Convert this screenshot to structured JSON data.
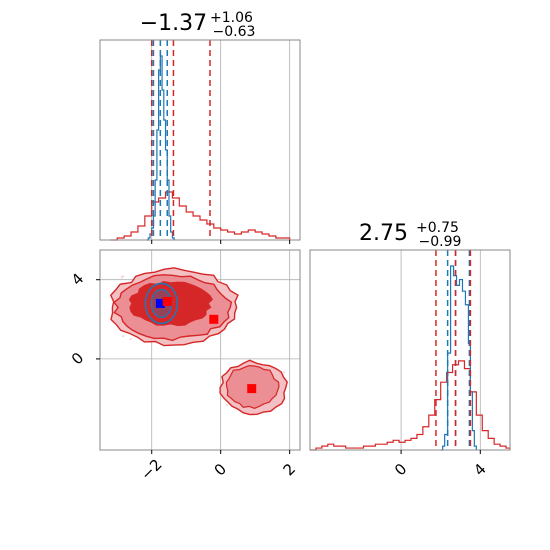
{
  "chart_data": {
    "type": "corner",
    "parameters": [
      {
        "title_median": "−1.37",
        "title_plus": "+1.06",
        "title_minus": "−0.63",
        "lim": [
          -3.5,
          2.3
        ],
        "ticks": [
          -2,
          0,
          2
        ],
        "tick_labels": [
          "−2",
          "0",
          "2"
        ]
      },
      {
        "title_median": "2.75",
        "title_plus": "+0.75",
        "title_minus": "−0.99",
        "lim": [
          -4.6,
          5.5
        ],
        "ticks": [
          0,
          4
        ],
        "tick_labels": [
          "0",
          "4"
        ]
      }
    ],
    "grid": true,
    "series": [
      {
        "color": "#1f77b4",
        "quantiles_p1": [
          -1.95,
          -1.75,
          -1.55
        ],
        "quantiles_p2": [
          2.35,
          2.75,
          3.45
        ]
      },
      {
        "color": "#d62728",
        "quantiles_p1": [
          -2.0,
          -1.37,
          -0.31
        ],
        "quantiles_p2": [
          1.76,
          2.75,
          3.5
        ]
      }
    ],
    "markers": [
      {
        "color": "#0000ff",
        "x": -1.75,
        "y": 2.8
      },
      {
        "color": "#ff0000",
        "x": -1.55,
        "y": 2.9
      },
      {
        "color": "#ff0000",
        "x": -0.2,
        "y": 2.0
      },
      {
        "color": "#ff0000",
        "x": 0.9,
        "y": -1.5
      }
    ],
    "hist1_blue": [
      [
        -2.15,
        0
      ],
      [
        -2.1,
        0.01
      ],
      [
        -2.05,
        0.03
      ],
      [
        -2.0,
        0.06
      ],
      [
        -1.95,
        0.12
      ],
      [
        -1.9,
        0.3
      ],
      [
        -1.85,
        0.55
      ],
      [
        -1.8,
        0.85
      ],
      [
        -1.75,
        0.92
      ],
      [
        -1.7,
        0.75
      ],
      [
        -1.65,
        0.6
      ],
      [
        -1.6,
        0.45
      ],
      [
        -1.55,
        0.3
      ],
      [
        -1.5,
        0.12
      ],
      [
        -1.45,
        0.04
      ],
      [
        -1.4,
        0.01
      ],
      [
        -1.35,
        0
      ]
    ],
    "hist1_red": [
      [
        -3.2,
        0
      ],
      [
        -3.0,
        0.01
      ],
      [
        -2.8,
        0.02
      ],
      [
        -2.6,
        0.04
      ],
      [
        -2.4,
        0.07
      ],
      [
        -2.2,
        0.12
      ],
      [
        -2.0,
        0.19
      ],
      [
        -1.8,
        0.21
      ],
      [
        -1.6,
        0.24
      ],
      [
        -1.4,
        0.21
      ],
      [
        -1.2,
        0.17
      ],
      [
        -1.0,
        0.14
      ],
      [
        -0.8,
        0.12
      ],
      [
        -0.6,
        0.1
      ],
      [
        -0.4,
        0.08
      ],
      [
        -0.2,
        0.06
      ],
      [
        0.0,
        0.05
      ],
      [
        0.2,
        0.04
      ],
      [
        0.4,
        0.03
      ],
      [
        0.6,
        0.04
      ],
      [
        0.8,
        0.05
      ],
      [
        1.0,
        0.04
      ],
      [
        1.2,
        0.03
      ],
      [
        1.4,
        0.02
      ],
      [
        1.6,
        0.01
      ],
      [
        1.8,
        0.01
      ],
      [
        2.0,
        0
      ]
    ],
    "hist2_blue": [
      [
        2.0,
        0
      ],
      [
        2.1,
        0.02
      ],
      [
        2.2,
        0.08
      ],
      [
        2.35,
        0.5
      ],
      [
        2.5,
        0.95
      ],
      [
        2.65,
        0.9
      ],
      [
        2.8,
        0.85
      ],
      [
        2.95,
        0.88
      ],
      [
        3.1,
        0.82
      ],
      [
        3.25,
        0.75
      ],
      [
        3.4,
        0.55
      ],
      [
        3.5,
        0.3
      ],
      [
        3.6,
        0.1
      ],
      [
        3.7,
        0.02
      ],
      [
        3.8,
        0
      ]
    ],
    "hist2_red": [
      [
        -4.6,
        0
      ],
      [
        -4.3,
        0.01
      ],
      [
        -4.0,
        0.02
      ],
      [
        -3.7,
        0.03
      ],
      [
        -3.4,
        0.02
      ],
      [
        -3.1,
        0.02
      ],
      [
        -2.8,
        0.01
      ],
      [
        -2.5,
        0.01
      ],
      [
        -2.2,
        0.01
      ],
      [
        -1.9,
        0.02
      ],
      [
        -1.6,
        0.02
      ],
      [
        -1.3,
        0.03
      ],
      [
        -1.0,
        0.03
      ],
      [
        -0.7,
        0.04
      ],
      [
        -0.4,
        0.05
      ],
      [
        -0.1,
        0.04
      ],
      [
        0.2,
        0.05
      ],
      [
        0.5,
        0.06
      ],
      [
        0.8,
        0.08
      ],
      [
        1.1,
        0.12
      ],
      [
        1.4,
        0.18
      ],
      [
        1.7,
        0.26
      ],
      [
        2.0,
        0.35
      ],
      [
        2.3,
        0.4
      ],
      [
        2.6,
        0.44
      ],
      [
        2.9,
        0.46
      ],
      [
        3.2,
        0.42
      ],
      [
        3.5,
        0.3
      ],
      [
        3.8,
        0.18
      ],
      [
        4.1,
        0.1
      ],
      [
        4.4,
        0.06
      ],
      [
        4.7,
        0.03
      ],
      [
        5.0,
        0.02
      ],
      [
        5.3,
        0.01
      ],
      [
        5.5,
        0
      ]
    ]
  }
}
